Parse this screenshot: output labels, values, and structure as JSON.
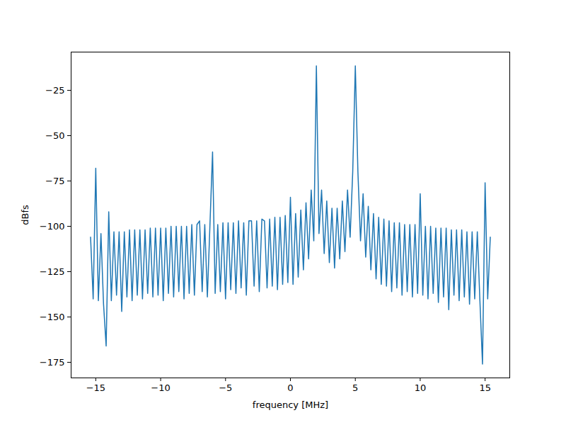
{
  "chart_data": {
    "type": "line",
    "x_label": "frequency [MHz]",
    "y_label": "dBfs",
    "color": "#1f77b4",
    "xlim": [
      -16.9,
      16.9
    ],
    "ylim": [
      -183.6,
      -3.9
    ],
    "xticks": [
      -15,
      -10,
      -5,
      0,
      5,
      10,
      15
    ],
    "yticks": [
      -175,
      -150,
      -125,
      -100,
      -75,
      -50,
      -25
    ],
    "grid": false,
    "x": [
      -15.4,
      -15.2,
      -15.0,
      -14.8,
      -14.6,
      -14.4,
      -14.2,
      -14.0,
      -13.8,
      -13.6,
      -13.4,
      -13.2,
      -13.0,
      -12.8,
      -12.6,
      -12.4,
      -12.2,
      -12.0,
      -11.8,
      -11.6,
      -11.4,
      -11.2,
      -11.0,
      -10.8,
      -10.6,
      -10.4,
      -10.2,
      -10.0,
      -9.8,
      -9.6,
      -9.4,
      -9.2,
      -9.0,
      -8.8,
      -8.6,
      -8.4,
      -8.2,
      -8.0,
      -7.8,
      -7.6,
      -7.4,
      -7.2,
      -7.0,
      -6.8,
      -6.6,
      -6.4,
      -6.2,
      -6.0,
      -5.8,
      -5.6,
      -5.4,
      -5.2,
      -5.0,
      -4.8,
      -4.6,
      -4.4,
      -4.2,
      -4.0,
      -3.8,
      -3.6,
      -3.4,
      -3.2,
      -3.0,
      -2.8,
      -2.6,
      -2.4,
      -2.2,
      -2.0,
      -1.8,
      -1.6,
      -1.4,
      -1.2,
      -1.0,
      -0.8,
      -0.6,
      -0.4,
      -0.2,
      0.0,
      0.2,
      0.4,
      0.6,
      0.8,
      1.0,
      1.2,
      1.4,
      1.6,
      1.8,
      2.0,
      2.2,
      2.4,
      2.6,
      2.8,
      3.0,
      3.2,
      3.4,
      3.6,
      3.8,
      4.0,
      4.2,
      4.4,
      4.6,
      4.8,
      5.0,
      5.2,
      5.4,
      5.6,
      5.8,
      6.0,
      6.2,
      6.4,
      6.6,
      6.8,
      7.0,
      7.2,
      7.4,
      7.6,
      7.8,
      8.0,
      8.2,
      8.4,
      8.6,
      8.8,
      9.0,
      9.2,
      9.4,
      9.6,
      9.8,
      10.0,
      10.2,
      10.4,
      10.6,
      10.8,
      11.0,
      11.2,
      11.4,
      11.6,
      11.8,
      12.0,
      12.2,
      12.4,
      12.6,
      12.8,
      13.0,
      13.2,
      13.4,
      13.6,
      13.8,
      14.0,
      14.2,
      14.4,
      14.6,
      14.8,
      15.0,
      15.2,
      15.4
    ],
    "values": [
      -106,
      -140,
      -68,
      -141,
      -104,
      -143,
      -166,
      -92,
      -141,
      -103,
      -138,
      -103,
      -147,
      -103,
      -139,
      -102,
      -141,
      -102,
      -138,
      -102,
      -140,
      -102,
      -137,
      -101,
      -139,
      -101,
      -138,
      -101,
      -141,
      -101,
      -137,
      -100,
      -139,
      -100,
      -136,
      -100,
      -140,
      -100,
      -137,
      -99,
      -138,
      -99,
      -97,
      -136,
      -99,
      -139,
      -99,
      -59,
      -137,
      -99,
      -136,
      -98,
      -140,
      -98,
      -135,
      -98,
      -137,
      -97,
      -134,
      -98,
      -138,
      -97,
      -97,
      -133,
      -97,
      -136,
      -96,
      -97,
      -134,
      -96,
      -133,
      -95,
      -135,
      -95,
      -132,
      -94,
      -131,
      -84,
      -132,
      -93,
      -128,
      -91,
      -124,
      -87,
      -118,
      -80,
      -108,
      -11.5,
      -104,
      -80,
      -115,
      -86,
      -120,
      -90,
      -123,
      -90,
      -118,
      -86,
      -114,
      -80,
      -106,
      -70,
      -11.5,
      -70,
      -108,
      -82,
      -117,
      -89,
      -124,
      -93,
      -129,
      -95,
      -132,
      -96,
      -133,
      -97,
      -136,
      -98,
      -134,
      -98,
      -138,
      -99,
      -136,
      -99,
      -139,
      -99,
      -137,
      -82,
      -138,
      -100,
      -140,
      -100,
      -137,
      -101,
      -142,
      -101,
      -139,
      -101,
      -146,
      -102,
      -138,
      -102,
      -141,
      -102,
      -139,
      -103,
      -143,
      -103,
      -140,
      -103,
      -141,
      -176,
      -76,
      -140,
      -106
    ]
  }
}
